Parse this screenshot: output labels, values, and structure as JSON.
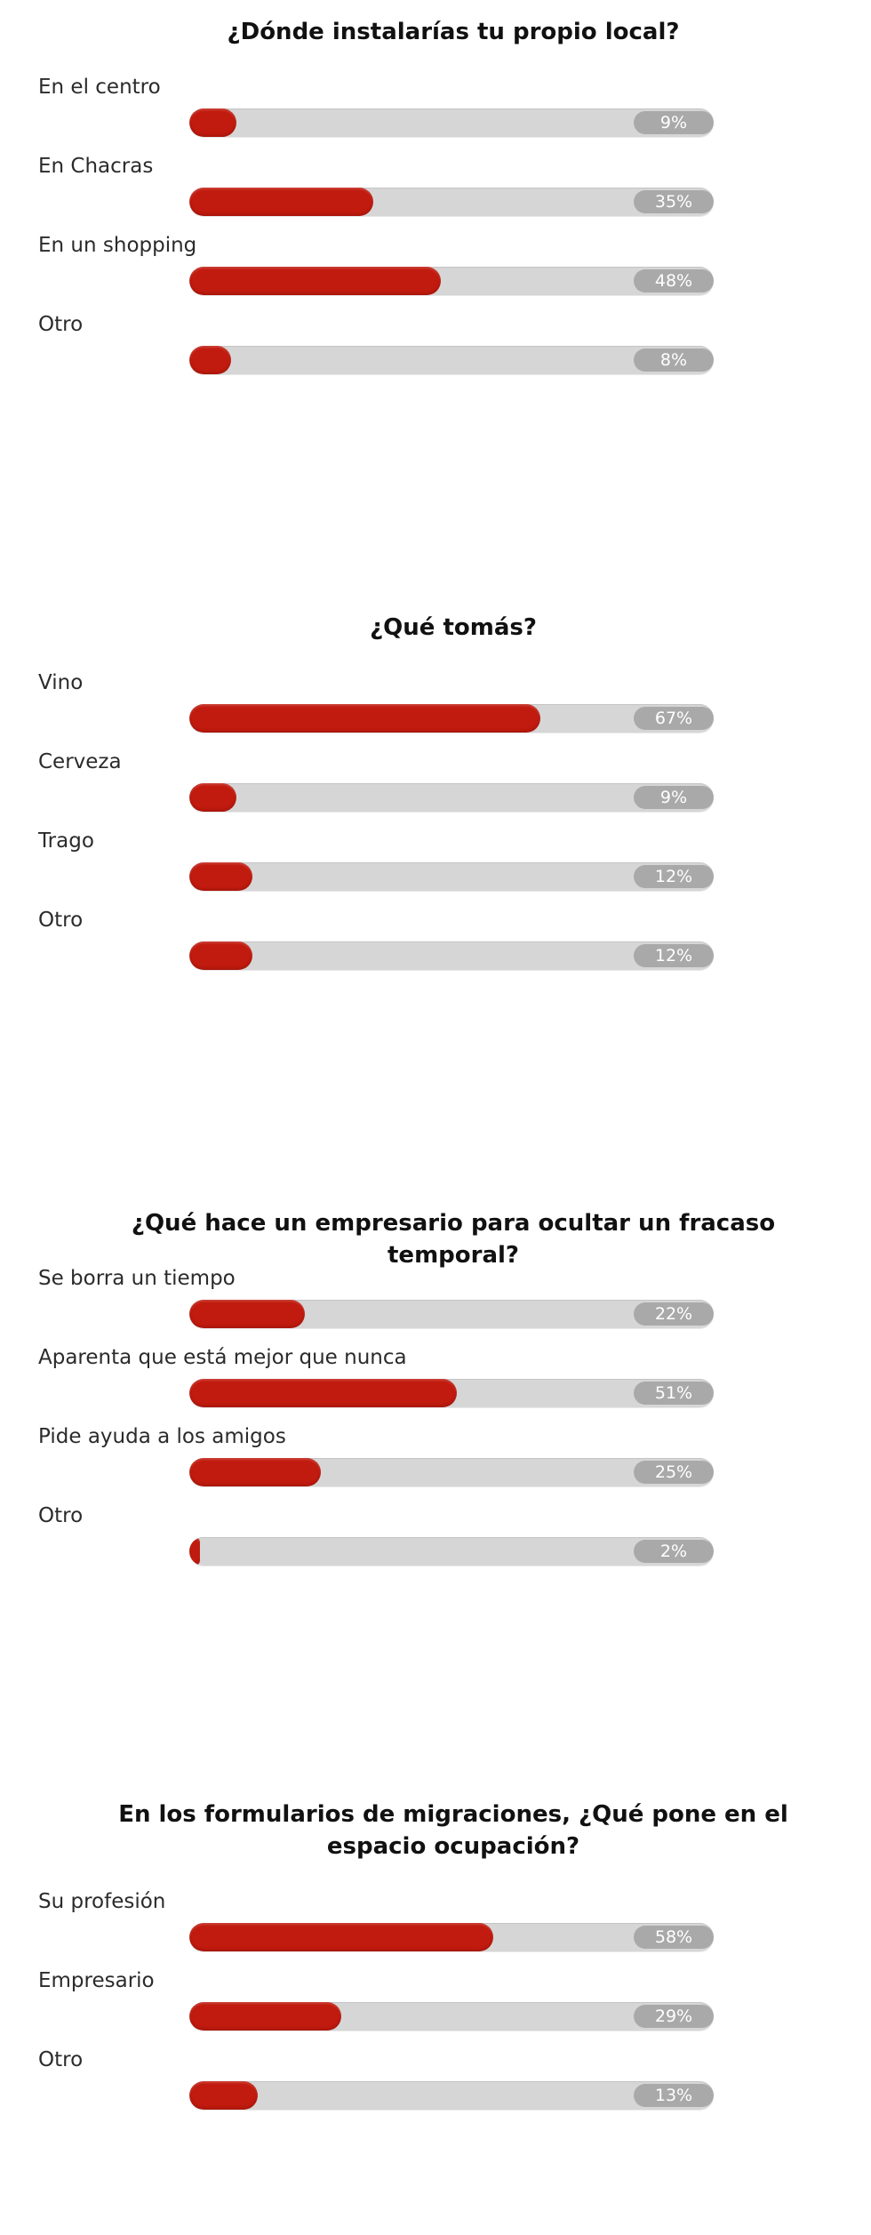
{
  "polls": [
    {
      "title": "¿Dónde instalarías tu propio local?",
      "options": [
        {
          "label": "En el centro",
          "percent": 9,
          "percent_label": "9%"
        },
        {
          "label": "En Chacras",
          "percent": 35,
          "percent_label": "35%"
        },
        {
          "label": "En un shopping",
          "percent": 48,
          "percent_label": "48%"
        },
        {
          "label": "Otro",
          "percent": 8,
          "percent_label": "8%"
        }
      ]
    },
    {
      "title": "¿Qué tomás?",
      "options": [
        {
          "label": "Vino",
          "percent": 67,
          "percent_label": "67%"
        },
        {
          "label": "Cerveza",
          "percent": 9,
          "percent_label": "9%"
        },
        {
          "label": "Trago",
          "percent": 12,
          "percent_label": "12%"
        },
        {
          "label": "Otro",
          "percent": 12,
          "percent_label": "12%"
        }
      ]
    },
    {
      "title": "¿Qué hace un empresario para ocultar un fracaso temporal?",
      "options": [
        {
          "label": "Se borra un tiempo",
          "percent": 22,
          "percent_label": "22%"
        },
        {
          "label": "Aparenta que está mejor que nunca",
          "percent": 51,
          "percent_label": "51%"
        },
        {
          "label": "Pide ayuda a los amigos",
          "percent": 25,
          "percent_label": "25%"
        },
        {
          "label": "Otro",
          "percent": 2,
          "percent_label": "2%"
        }
      ]
    },
    {
      "title": "En los formularios de migraciones, ¿Qué pone en el espacio ocupación?",
      "options": [
        {
          "label": "Su profesión",
          "percent": 58,
          "percent_label": "58%"
        },
        {
          "label": "Empresario",
          "percent": 29,
          "percent_label": "29%"
        },
        {
          "label": "Otro",
          "percent": 13,
          "percent_label": "13%"
        }
      ]
    }
  ],
  "colors": {
    "bar_fill": "#c11a0e",
    "bar_track": "#d6d6d6",
    "percent_pill": "#a9a9a9"
  }
}
